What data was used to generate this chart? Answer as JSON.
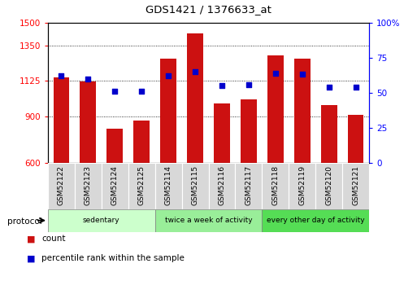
{
  "title": "GDS1421 / 1376633_at",
  "samples": [
    "GSM52122",
    "GSM52123",
    "GSM52124",
    "GSM52125",
    "GSM52114",
    "GSM52115",
    "GSM52116",
    "GSM52117",
    "GSM52118",
    "GSM52119",
    "GSM52120",
    "GSM52121"
  ],
  "counts": [
    1150,
    1120,
    820,
    870,
    1270,
    1430,
    980,
    1010,
    1290,
    1270,
    970,
    910
  ],
  "percentiles": [
    62,
    60,
    51,
    51,
    62,
    65,
    55,
    56,
    64,
    63,
    54,
    54
  ],
  "groups": [
    {
      "label": "sedentary",
      "start": 0,
      "end": 4,
      "color": "#ccffcc"
    },
    {
      "label": "twice a week of activity",
      "start": 4,
      "end": 8,
      "color": "#99ee99"
    },
    {
      "label": "every other day of activity",
      "start": 8,
      "end": 12,
      "color": "#55dd55"
    }
  ],
  "ylim_left": [
    600,
    1500
  ],
  "ylim_right": [
    0,
    100
  ],
  "yticks_left": [
    600,
    900,
    1125,
    1350,
    1500
  ],
  "yticks_right": [
    0,
    25,
    50,
    75,
    100
  ],
  "bar_color": "#cc1111",
  "dot_color": "#0000cc",
  "background_color": "#ffffff"
}
